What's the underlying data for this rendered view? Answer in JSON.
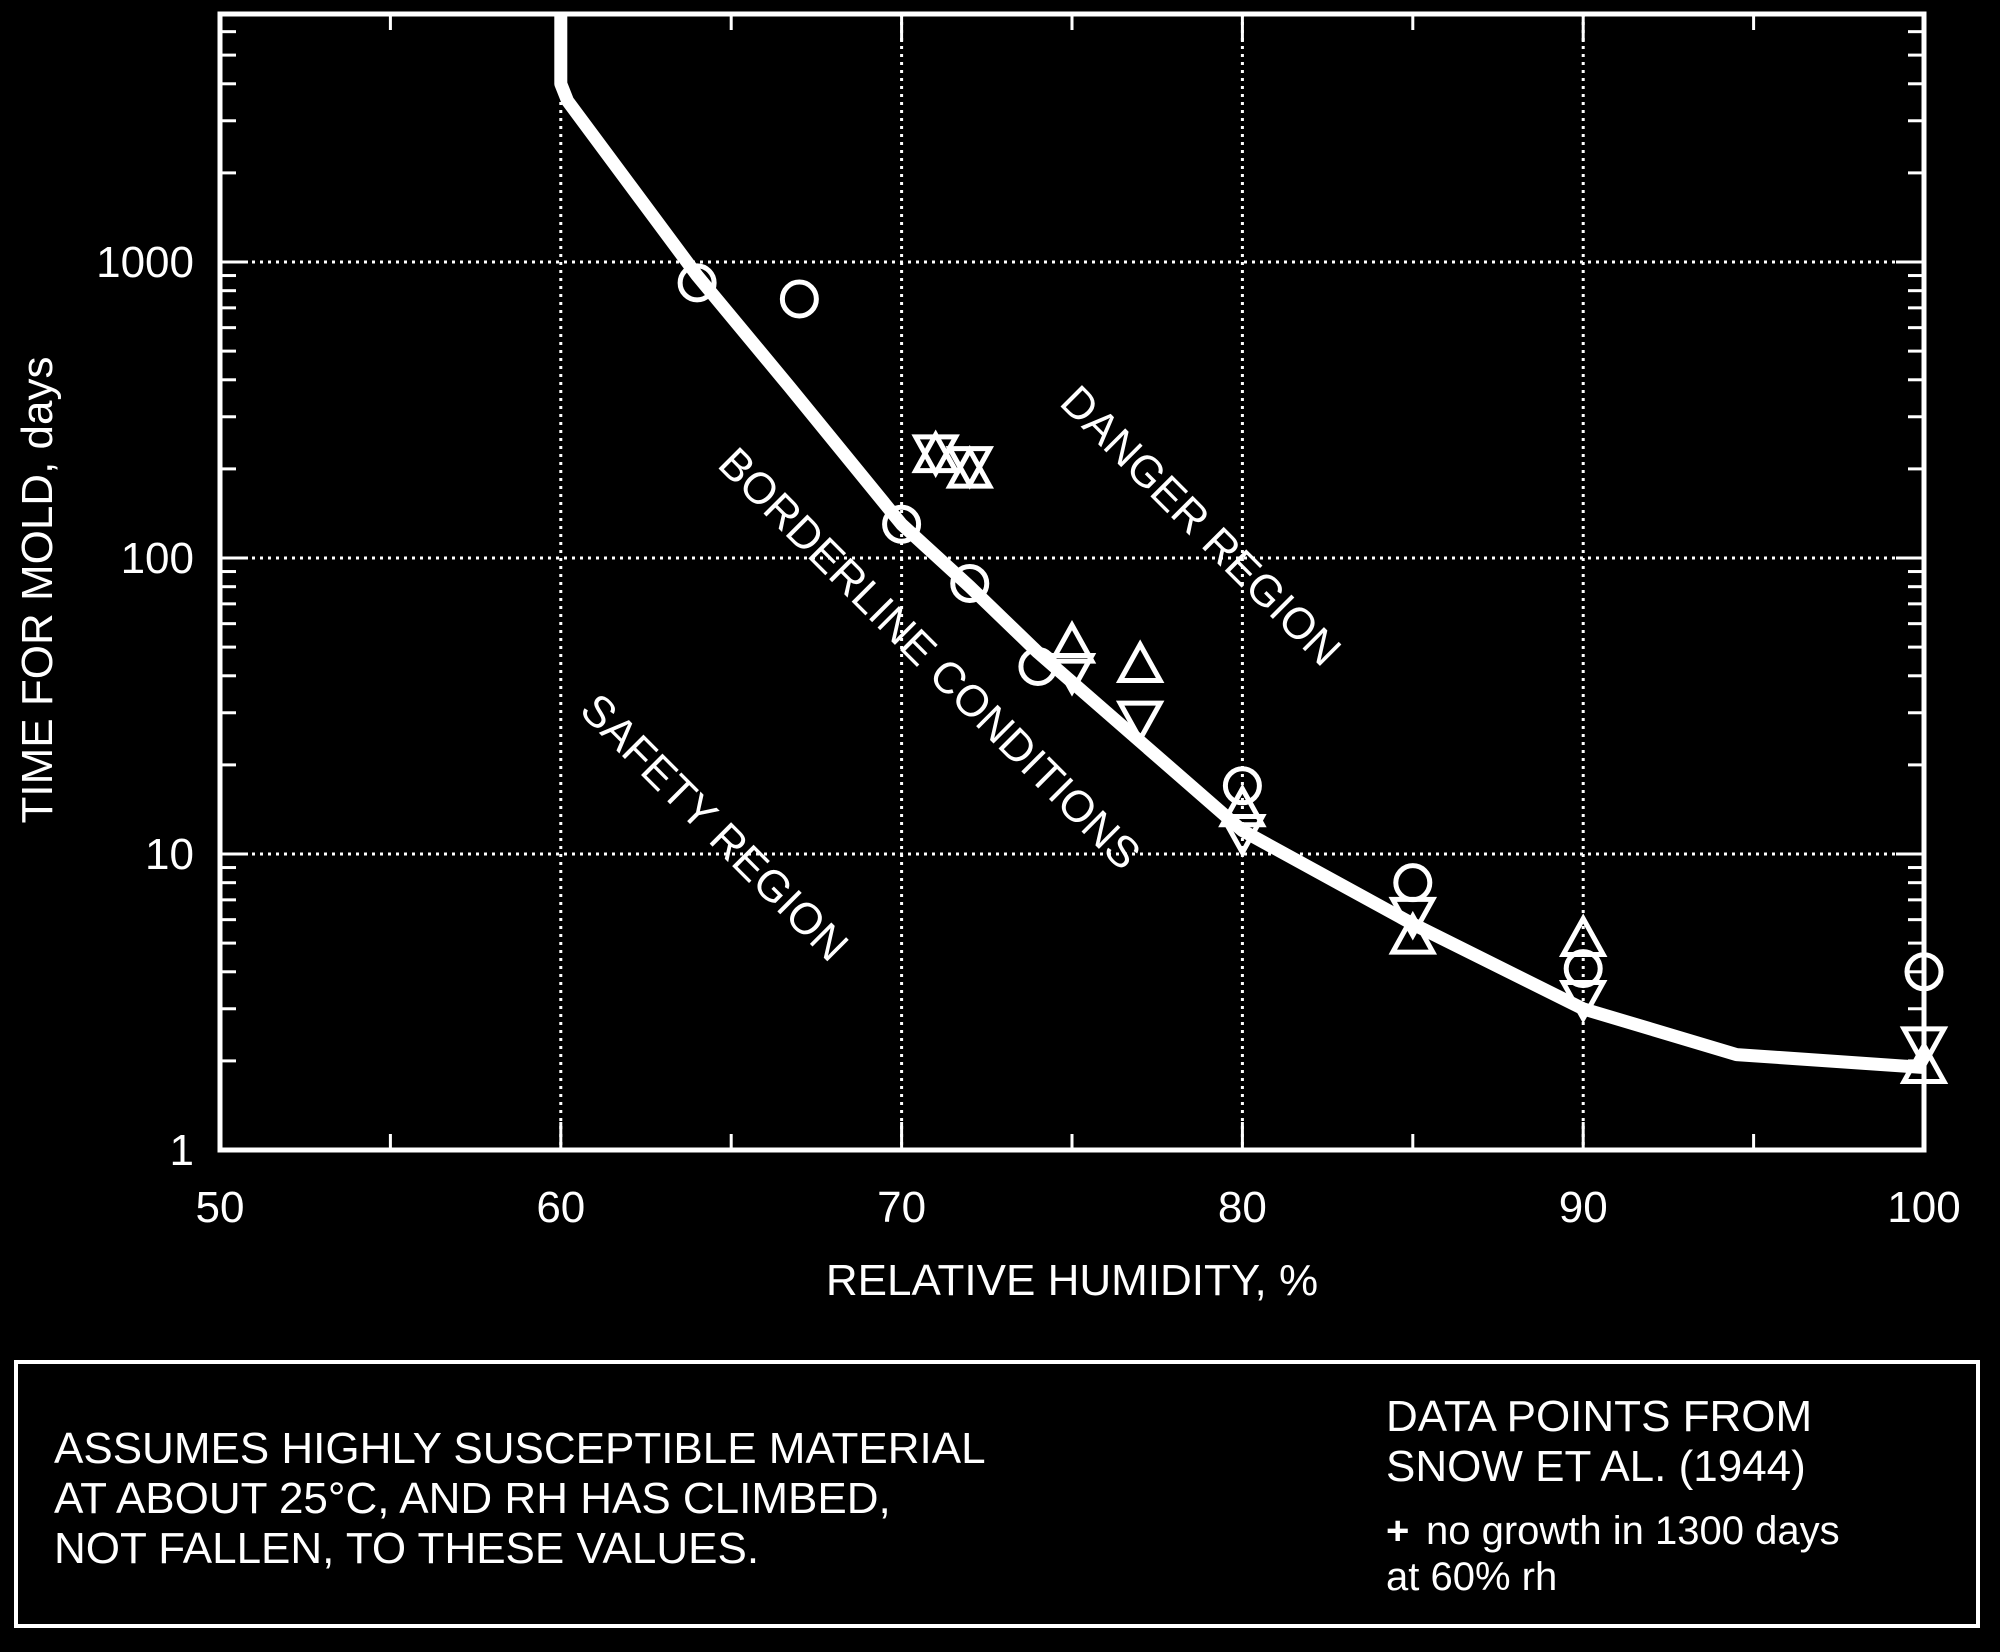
{
  "chart_data": {
    "type": "scatter",
    "title": "",
    "xlabel": "RELATIVE HUMIDITY, %",
    "ylabel": "TIME FOR MOLD, days",
    "xlim": [
      50,
      100
    ],
    "ylim": [
      1,
      8000
    ],
    "yscale": "log",
    "grid": true,
    "x_ticks": [
      50,
      60,
      70,
      80,
      90,
      100
    ],
    "x_tick_labels": [
      "50",
      "60",
      "70",
      "80",
      "90",
      "100"
    ],
    "y_ticks": [
      1,
      10,
      100,
      1000
    ],
    "y_tick_labels": [
      "1",
      "10",
      "100",
      "1000"
    ],
    "curve": {
      "x": [
        60,
        60,
        60.2,
        64,
        66.7,
        70,
        72,
        74,
        77,
        80,
        85,
        90,
        94.5,
        100
      ],
      "y": [
        8000,
        4000,
        3500,
        900,
        380,
        130,
        80,
        48,
        24,
        12,
        5.8,
        3.0,
        2.1,
        1.9
      ]
    },
    "series": [
      {
        "marker": "circle",
        "x": [
          64,
          67,
          70,
          72,
          74,
          80,
          85,
          90,
          100
        ],
        "y": [
          850,
          750,
          130,
          82,
          43,
          17,
          8,
          4.1,
          4
        ]
      },
      {
        "marker": "triangle-up",
        "x": [
          71,
          72,
          75,
          77,
          80,
          85,
          90,
          100
        ],
        "y": [
          220,
          195,
          50,
          43,
          14,
          5.2,
          5.1,
          1.9
        ]
      },
      {
        "marker": "triangle-down",
        "x": [
          71,
          72,
          75,
          77,
          80,
          85,
          90,
          100
        ],
        "y": [
          230,
          210,
          42,
          29,
          12,
          6.3,
          3.3,
          2.3
        ]
      }
    ],
    "annotations": [
      "DANGER REGION",
      "BORDERLINE CONDITIONS",
      "SAFETY REGION"
    ]
  },
  "notes": {
    "left": "ASSUMES HIGHLY SUSCEPTIBLE MATERIAL\nAT ABOUT 25°C, AND RH HAS CLIMBED,\nNOT FALLEN, TO THESE VALUES.",
    "source": "DATA POINTS FROM\nSNOW ET AL. (1944)",
    "plus_symbol": "+",
    "no_growth": "no growth in 1300 days\nat 60% rh"
  }
}
